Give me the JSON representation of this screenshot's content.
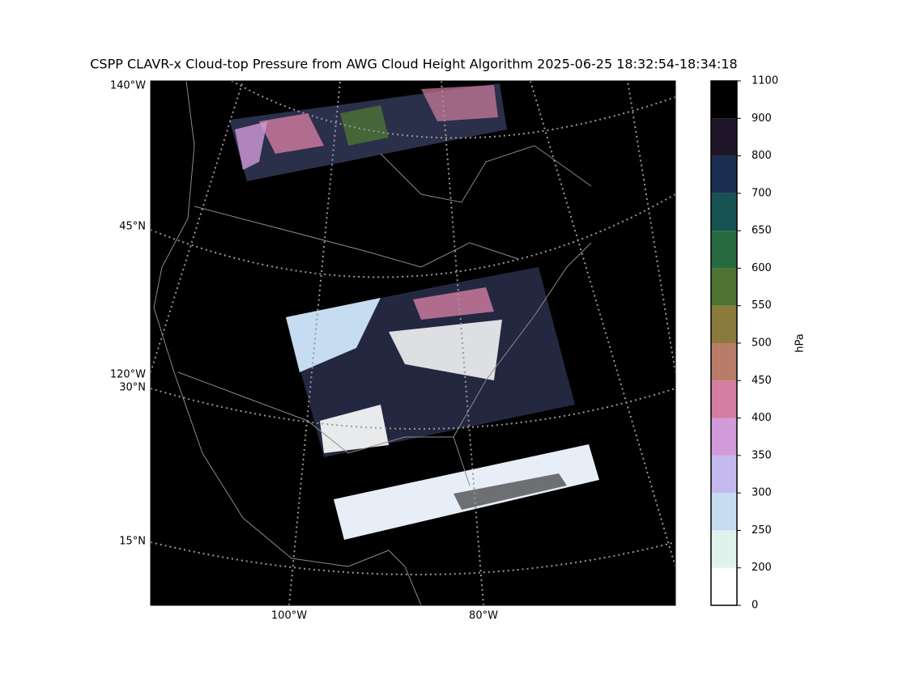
{
  "title": "CSPP CLAVR-x Cloud-top Pressure from AWG Cloud Height Algorithm 2025-06-25 18:32:54-18:34:18",
  "map": {
    "lat_labels": [
      "45°N",
      "30°N",
      "15°N"
    ],
    "lon_left_labels": [
      "140°W",
      "120°W"
    ],
    "lon_bottom_labels": [
      "100°W",
      "80°W"
    ]
  },
  "colorbar": {
    "label": "hPa",
    "boundaries": [
      0,
      200,
      250,
      300,
      350,
      400,
      450,
      500,
      550,
      600,
      650,
      700,
      800,
      900,
      1100
    ],
    "colors": [
      "#ffffff",
      "#dff2ec",
      "#c6dcf0",
      "#c3b9ef",
      "#d29ad8",
      "#d37da0",
      "#b97c69",
      "#8a7b3c",
      "#4e7333",
      "#276a3f",
      "#195252",
      "#1c2d52",
      "#1e1528",
      "#000000"
    ]
  }
}
